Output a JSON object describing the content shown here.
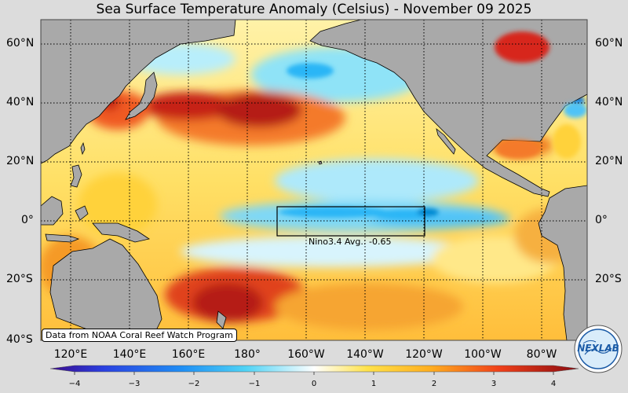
{
  "title": "Sea Surface Temperature Anomaly (Celsius) - November 09 2025",
  "latitude_labels": [
    "60°N",
    "40°N",
    "20°N",
    "0°",
    "20°S",
    "40°S"
  ],
  "longitude_labels": [
    "120°E",
    "140°E",
    "160°E",
    "180°",
    "160°W",
    "140°W",
    "120°W",
    "100°W",
    "80°W"
  ],
  "nino_box": {
    "label": "Nino3.4 Avg.: -0.65",
    "avg": -0.65,
    "lon_range": [
      "170°W",
      "120°W"
    ],
    "lat_range": [
      "5°S",
      "5°N"
    ]
  },
  "colorbar": {
    "min": -4,
    "max": 4,
    "ticks": [
      "−4",
      "−3",
      "−2",
      "−1",
      "0",
      "1",
      "2",
      "3",
      "4"
    ]
  },
  "credit": "Data from NOAA Coral Reef Watch Program",
  "logo_text": "NEXLAB",
  "colors": {
    "land": "#a9a9a9",
    "background": "#dcdcdc",
    "warm": "#d7301f",
    "cool": "#4fc3f7",
    "neutral": "#ffffff"
  }
}
